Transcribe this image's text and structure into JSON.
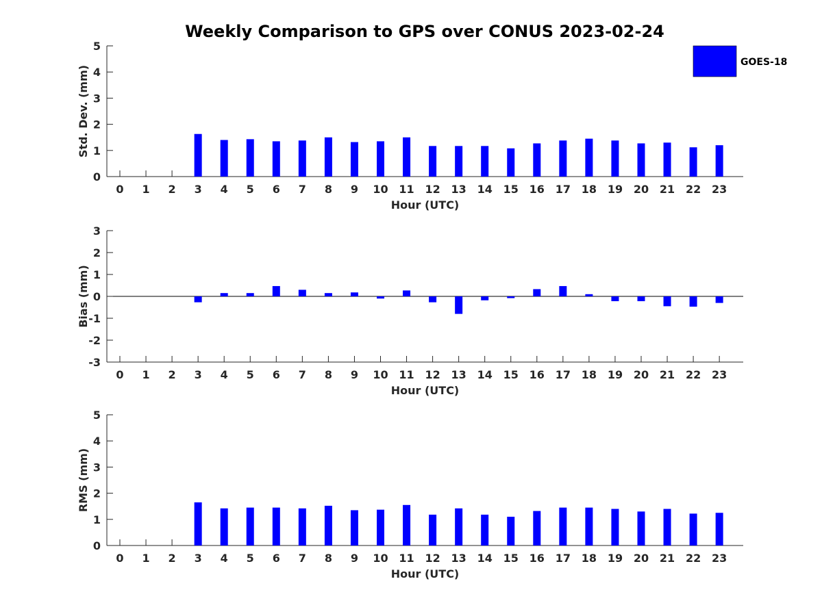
{
  "chart_data": {
    "type": "bar",
    "title": "Weekly Comparison to GPS over CONUS 2023-02-24",
    "legend": {
      "label": "GOES-18",
      "color": "#0000ff",
      "placement": "top-right"
    },
    "categories": [
      "0",
      "1",
      "2",
      "3",
      "4",
      "5",
      "6",
      "7",
      "8",
      "9",
      "10",
      "11",
      "12",
      "13",
      "14",
      "15",
      "16",
      "17",
      "18",
      "19",
      "20",
      "21",
      "22",
      "23"
    ],
    "panels": [
      {
        "id": "std",
        "ylabel": "Std. Dev. (mm)",
        "xlabel": "Hour (UTC)",
        "ylim": [
          0,
          5
        ],
        "yticks": [
          "0",
          "1",
          "2",
          "3",
          "4",
          "5"
        ],
        "values": [
          null,
          null,
          null,
          1.63,
          1.4,
          1.43,
          1.35,
          1.38,
          1.5,
          1.32,
          1.35,
          1.5,
          1.17,
          1.17,
          1.17,
          1.08,
          1.27,
          1.38,
          1.45,
          1.38,
          1.27,
          1.3,
          1.12,
          1.2
        ]
      },
      {
        "id": "bias",
        "ylabel": "Bias (mm)",
        "xlabel": "Hour (UTC)",
        "ylim": [
          -3,
          3
        ],
        "yticks": [
          "-3",
          "-2",
          "-1",
          "0",
          "1",
          "2",
          "3"
        ],
        "values": [
          null,
          null,
          null,
          -0.27,
          0.15,
          0.15,
          0.47,
          0.3,
          0.15,
          0.18,
          -0.1,
          0.27,
          -0.27,
          -0.8,
          -0.18,
          -0.08,
          0.33,
          0.47,
          0.1,
          -0.22,
          -0.22,
          -0.45,
          -0.47,
          -0.3
        ]
      },
      {
        "id": "rms",
        "ylabel": "RMS (mm)",
        "xlabel": "Hour (UTC)",
        "ylim": [
          0,
          5
        ],
        "yticks": [
          "0",
          "1",
          "2",
          "3",
          "4",
          "5"
        ],
        "values": [
          null,
          null,
          null,
          1.65,
          1.42,
          1.45,
          1.45,
          1.42,
          1.52,
          1.35,
          1.37,
          1.55,
          1.18,
          1.42,
          1.18,
          1.1,
          1.32,
          1.45,
          1.45,
          1.4,
          1.3,
          1.4,
          1.22,
          1.25
        ]
      }
    ]
  }
}
